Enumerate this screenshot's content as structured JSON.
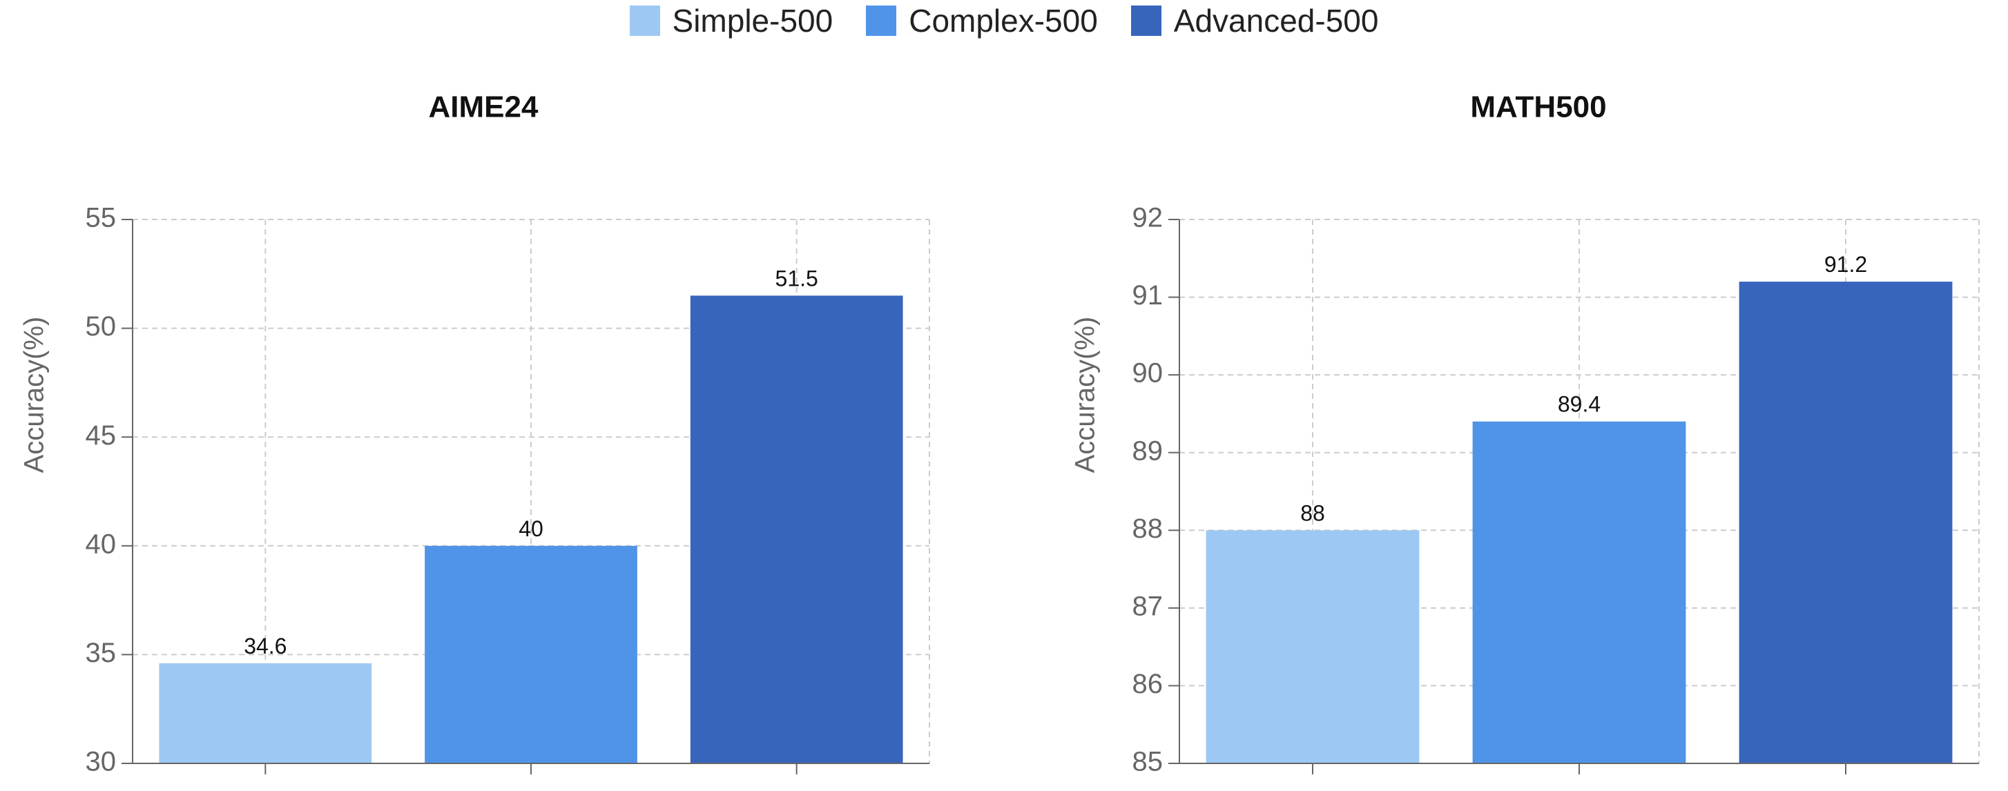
{
  "legend": [
    {
      "label": "Simple-500",
      "color": "#9ec8f4"
    },
    {
      "label": "Complex-500",
      "color": "#5094e9"
    },
    {
      "label": "Advanced-500",
      "color": "#3765bc"
    }
  ],
  "chart_data": [
    {
      "type": "bar",
      "title": "AIME24",
      "ylabel": "Accuracy(%)",
      "ylim": [
        30,
        55
      ],
      "yticks": [
        30,
        35,
        40,
        45,
        50,
        55
      ],
      "grid": true,
      "legend_position": "top-center",
      "categories": [
        "Simple-500",
        "Complex-500",
        "Advanced-500"
      ],
      "values": [
        34.6,
        40,
        51.5
      ],
      "value_labels": [
        "34.6",
        "40",
        "51.5"
      ]
    },
    {
      "type": "bar",
      "title": "MATH500",
      "ylabel": "Accuracy(%)",
      "ylim": [
        85,
        92
      ],
      "yticks": [
        85,
        86,
        87,
        88,
        89,
        90,
        91,
        92
      ],
      "grid": true,
      "legend_position": "top-center",
      "categories": [
        "Simple-500",
        "Complex-500",
        "Advanced-500"
      ],
      "values": [
        88,
        89.4,
        91.2
      ],
      "value_labels": [
        "88",
        "89.4",
        "91.2"
      ]
    }
  ]
}
